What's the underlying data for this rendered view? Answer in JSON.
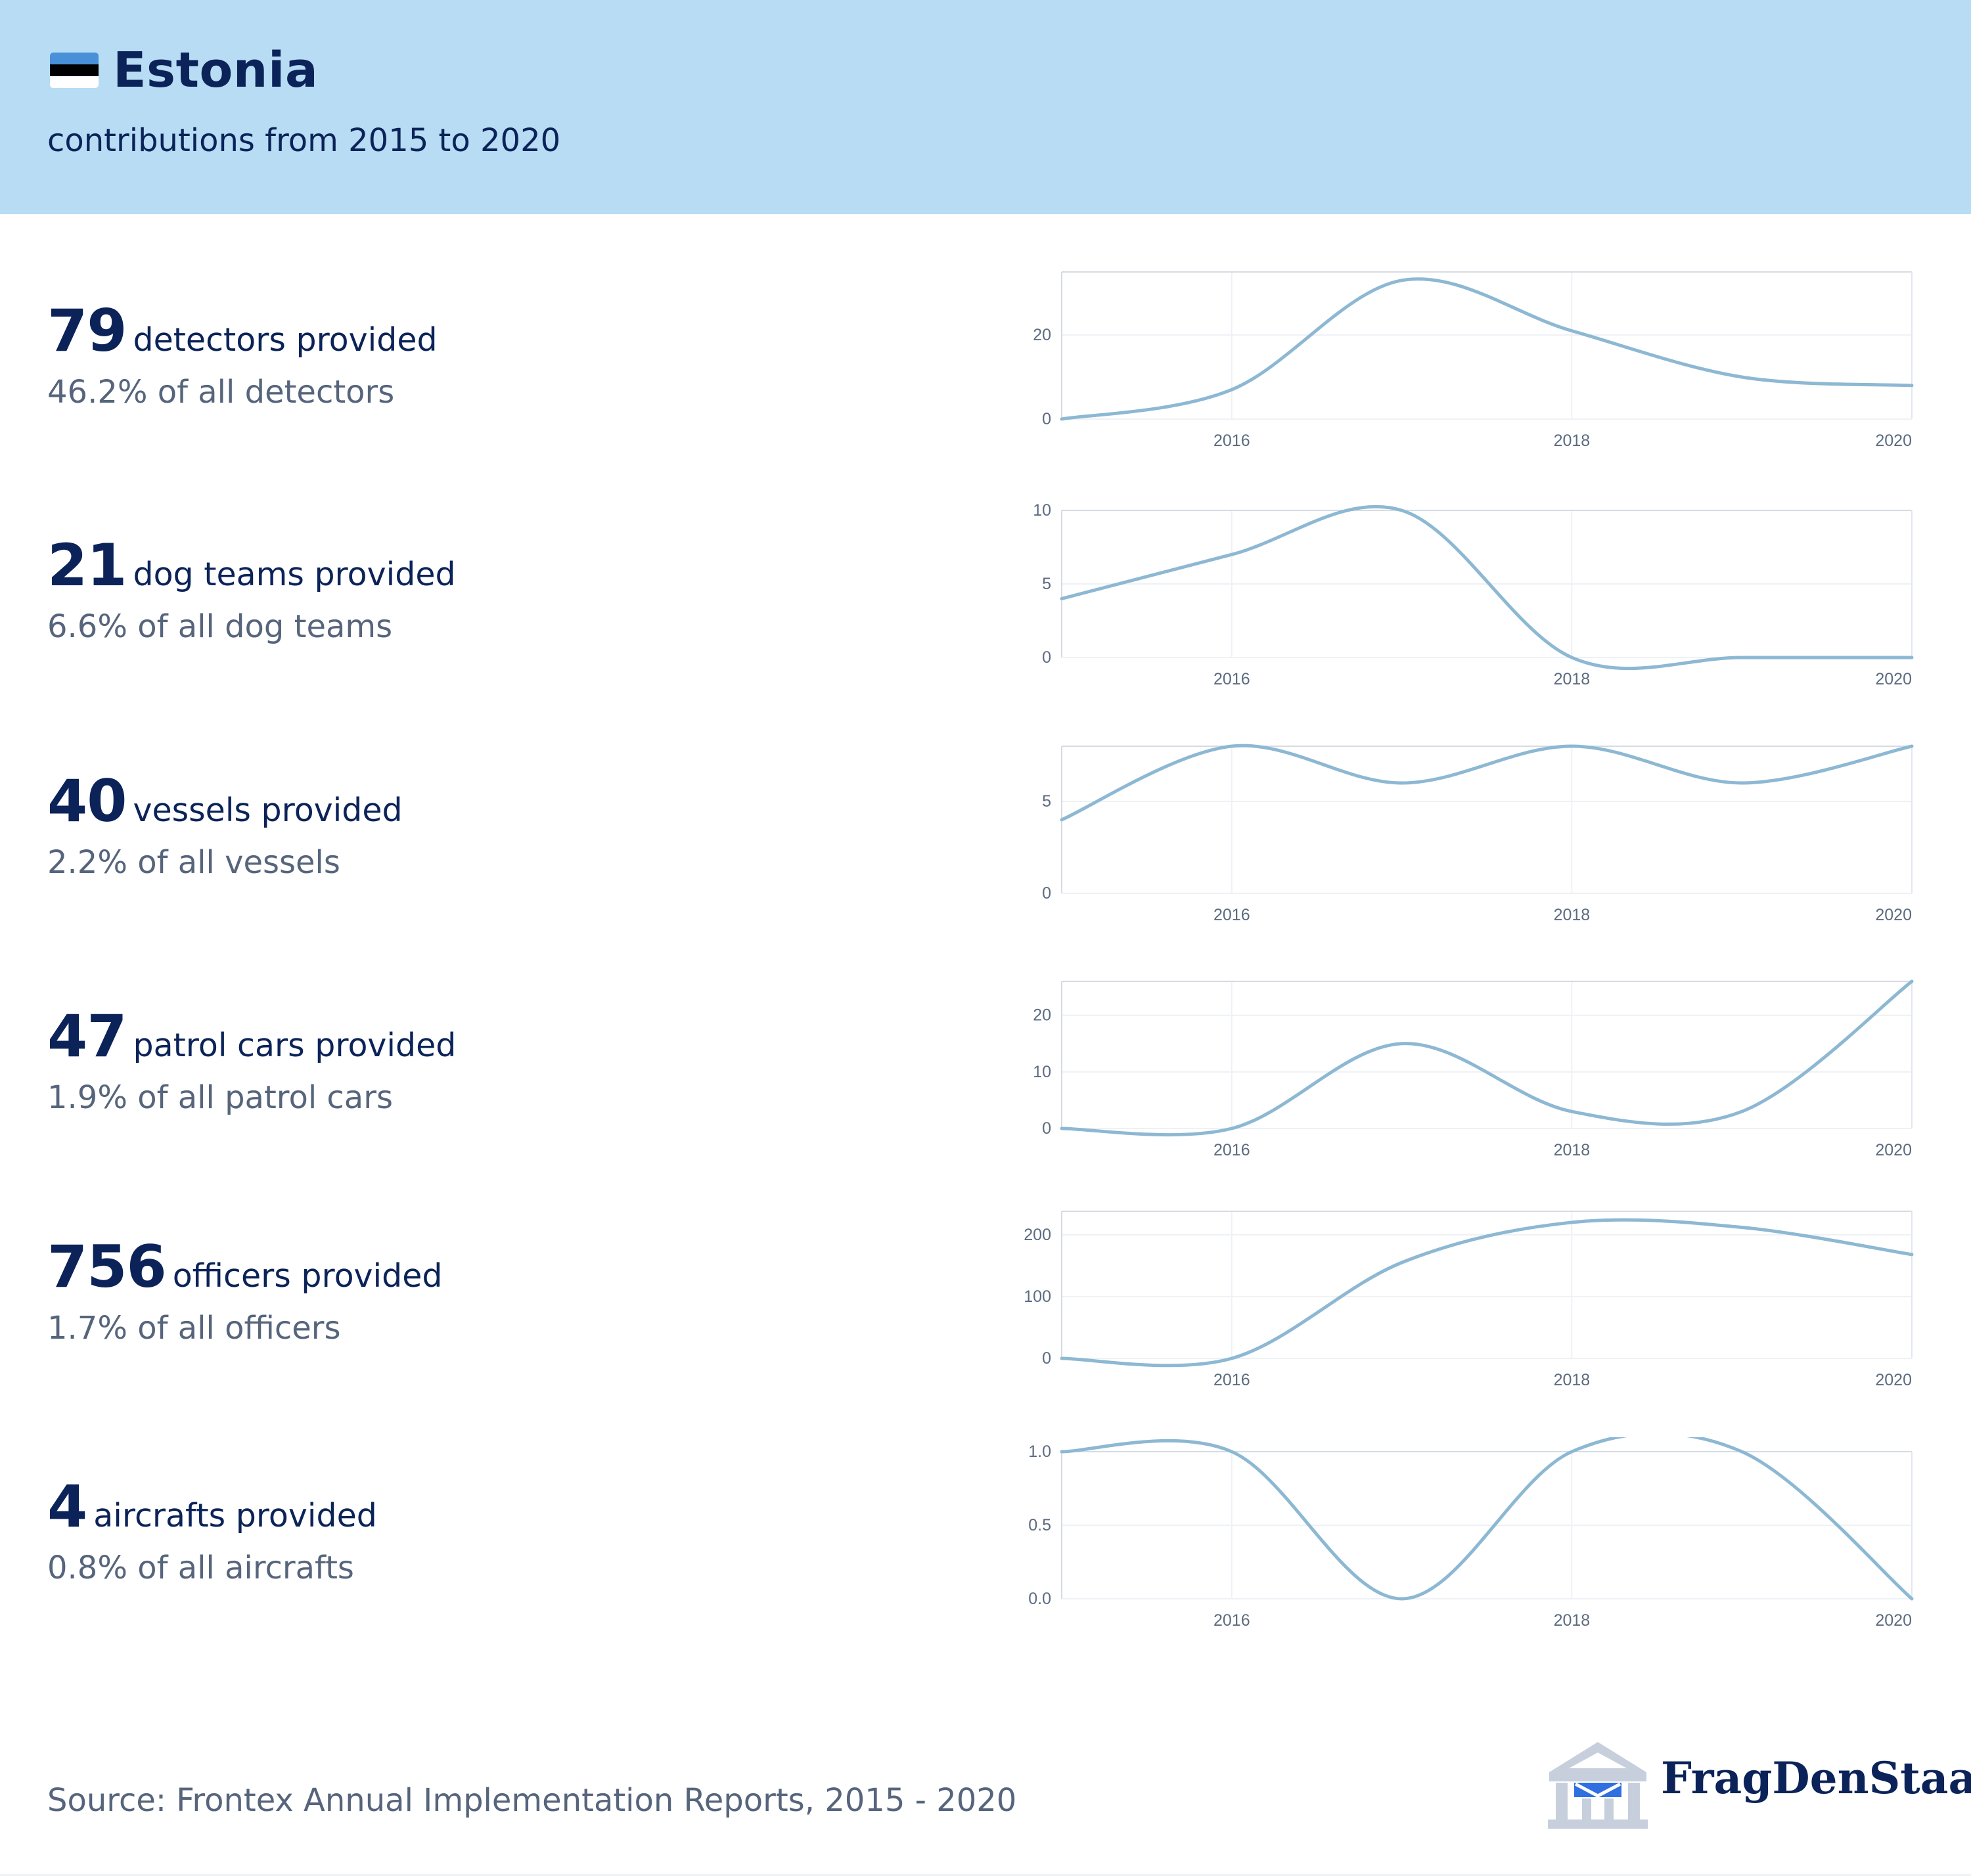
{
  "header": {
    "flag_colors": [
      "#4891d9",
      "#000000",
      "#ffffff"
    ],
    "title": "Estonia",
    "subtitle": "contributions from 2015 to 2020"
  },
  "stats": [
    {
      "number": "79",
      "label": "detectors provided",
      "share": "46.2% of all detectors"
    },
    {
      "number": "21",
      "label": "dog teams provided",
      "share": "6.6% of all dog teams"
    },
    {
      "number": "40",
      "label": "vessels provided",
      "share": "2.2% of all vessels"
    },
    {
      "number": "47",
      "label": "patrol cars provided",
      "share": "1.9% of all patrol cars"
    },
    {
      "number": "756",
      "label": "officers provided",
      "share": "1.7% of all officers"
    },
    {
      "number": "4",
      "label": "aircrafts provided",
      "share": "0.8% of all aircrafts"
    }
  ],
  "chart_data": [
    {
      "type": "line",
      "x": [
        2015,
        2016,
        2017,
        2018,
        2019,
        2020
      ],
      "values": [
        0,
        7,
        33,
        21,
        10,
        8
      ],
      "xlim": [
        2015,
        2020
      ],
      "ylim": [
        0,
        35
      ],
      "x_ticks": [
        "2016",
        "2018",
        "2020"
      ],
      "y_ticks": [
        0,
        20
      ],
      "y_tick_labels": [
        "0",
        "20"
      ],
      "color": "#8db8d3",
      "grid": true
    },
    {
      "type": "line",
      "x": [
        2015,
        2016,
        2017,
        2018,
        2019,
        2020
      ],
      "values": [
        4,
        7,
        10,
        0,
        0,
        0
      ],
      "xlim": [
        2015,
        2020
      ],
      "ylim": [
        0,
        10
      ],
      "x_ticks": [
        "2016",
        "2018",
        "2020"
      ],
      "y_ticks": [
        0,
        5,
        10
      ],
      "y_tick_labels": [
        "0",
        "5",
        "10"
      ],
      "color": "#8db8d3",
      "grid": true
    },
    {
      "type": "line",
      "x": [
        2015,
        2016,
        2017,
        2018,
        2019,
        2020
      ],
      "values": [
        4,
        8,
        6,
        8,
        6,
        8
      ],
      "xlim": [
        2015,
        2020
      ],
      "ylim": [
        0,
        8
      ],
      "x_ticks": [
        "2016",
        "2018",
        "2020"
      ],
      "y_ticks": [
        0,
        5
      ],
      "y_tick_labels": [
        "0",
        "5"
      ],
      "color": "#8db8d3",
      "grid": true
    },
    {
      "type": "line",
      "x": [
        2015,
        2016,
        2017,
        2018,
        2019,
        2020
      ],
      "values": [
        0,
        0,
        15,
        3,
        3,
        26
      ],
      "xlim": [
        2015,
        2020
      ],
      "ylim": [
        0,
        26
      ],
      "x_ticks": [
        "2016",
        "2018",
        "2020"
      ],
      "y_ticks": [
        0,
        10,
        20
      ],
      "y_tick_labels": [
        "0",
        "10",
        "20"
      ],
      "color": "#8db8d3",
      "grid": true
    },
    {
      "type": "line",
      "x": [
        2015,
        2016,
        2017,
        2018,
        2019,
        2020
      ],
      "values": [
        0,
        0,
        155,
        220,
        212,
        168
      ],
      "xlim": [
        2015,
        2020
      ],
      "ylim": [
        0,
        238
      ],
      "x_ticks": [
        "2016",
        "2018",
        "2020"
      ],
      "y_ticks": [
        0,
        100,
        200
      ],
      "y_tick_labels": [
        "0",
        "100",
        "200"
      ],
      "color": "#8db8d3",
      "grid": true
    },
    {
      "type": "line",
      "x": [
        2015,
        2016,
        2017,
        2018,
        2019,
        2020
      ],
      "values": [
        1,
        1,
        0,
        1,
        1,
        0
      ],
      "xlim": [
        2015,
        2020
      ],
      "ylim": [
        0,
        1
      ],
      "x_ticks": [
        "2016",
        "2018",
        "2020"
      ],
      "y_ticks": [
        0,
        0.5,
        1
      ],
      "y_tick_labels": [
        "0.0",
        "0.5",
        "1.0"
      ],
      "color": "#8db8d3",
      "grid": true
    }
  ],
  "footer": {
    "source": "Source: Frontex Annual Implementation Reports, 2015 - 2020",
    "logo_text": "FragDenStaat",
    "logo_icon": "building-mail-icon"
  }
}
